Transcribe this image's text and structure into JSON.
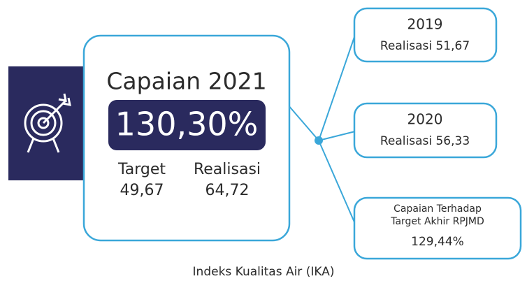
{
  "panel": {
    "title": "Capaian 2021",
    "value": "130,30%",
    "target": {
      "label": "Target",
      "value": "49,67"
    },
    "realisasi": {
      "label": "Realisasi",
      "value": "64,72"
    }
  },
  "history": [
    {
      "year": "2019",
      "text": "Realisasi 51,67"
    },
    {
      "year": "2020",
      "text": "Realisasi 56,33"
    }
  ],
  "rpjmd": {
    "lines": [
      "Capaian Terhadap",
      "Target Akhir RPJMD"
    ],
    "value": "129,44%"
  },
  "footer": "Indeks Kualitas Air (IKA)"
}
